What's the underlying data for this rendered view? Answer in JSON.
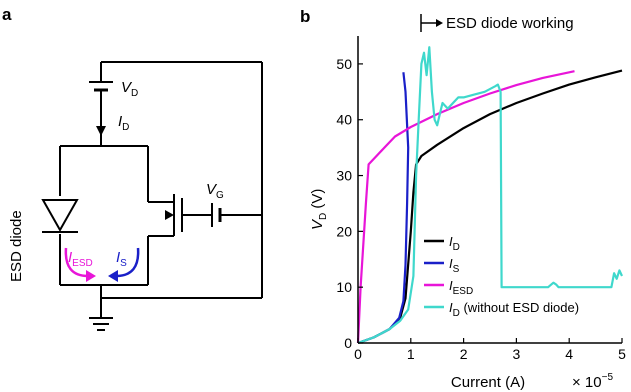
{
  "panel_a": {
    "label": "a",
    "vd_label": "V",
    "vd_sub": "D",
    "id_label": "I",
    "id_sub": "D",
    "vg_label": "V",
    "vg_sub": "G",
    "diode_label": "ESD diode",
    "iesd_label": "I",
    "iesd_sub": "ESD",
    "is_label": "I",
    "is_sub": "S",
    "colors": {
      "iesd": "#e815d8",
      "is": "#1a20c8",
      "wire": "#000000"
    }
  },
  "panel_b": {
    "label": "b",
    "annotation": "ESD diode working"
  },
  "chart_data": {
    "type": "line",
    "xlabel": "Current (A)",
    "x_multiplier": "× 10",
    "x_multiplier_exp": "−5",
    "ylabel_main": "V",
    "ylabel_sub": "D",
    "ylabel_unit": " (V)",
    "xlim": [
      0,
      5
    ],
    "ylim": [
      0,
      55
    ],
    "x_ticks": [
      0,
      1,
      2,
      3,
      4,
      5
    ],
    "y_ticks": [
      0,
      10,
      20,
      30,
      40,
      50
    ],
    "x_tick_labels": [
      "0",
      "1",
      "2",
      "3",
      "4",
      "5"
    ],
    "y_tick_labels": [
      "0",
      "10",
      "20",
      "30",
      "40",
      "50"
    ],
    "grid": false,
    "legend_position": "bottom-right",
    "series": [
      {
        "key": "ID",
        "name_main": "I",
        "name_sub": "D",
        "name_suffix": "",
        "color": "#000000",
        "x": [
          0,
          0.3,
          0.6,
          0.8,
          0.9,
          1.0,
          1.05,
          1.1,
          1.2,
          1.5,
          2.0,
          2.5,
          3.0,
          3.5,
          4.0,
          4.5,
          5.0
        ],
        "y": [
          0,
          1,
          2.5,
          4.5,
          8,
          20,
          27,
          32,
          33.5,
          35.5,
          38.5,
          41,
          43,
          44.7,
          46.3,
          47.6,
          48.8
        ]
      },
      {
        "key": "IS",
        "name_main": "I",
        "name_sub": "S",
        "name_suffix": "",
        "color": "#1a20c8",
        "x": [
          0,
          0.3,
          0.6,
          0.78,
          0.86,
          0.9,
          0.93,
          0.95,
          0.9,
          0.86
        ],
        "y": [
          0,
          1,
          2.5,
          4.5,
          7.5,
          14,
          25,
          35,
          45,
          48.5
        ]
      },
      {
        "key": "IESD",
        "name_main": "I",
        "name_sub": "ESD",
        "name_suffix": "",
        "color": "#e815d8",
        "x": [
          0,
          0.05,
          0.15,
          0.2,
          0.35,
          0.5,
          0.7,
          1.0,
          1.5,
          2.0,
          2.5,
          3.0,
          3.5,
          4.1
        ],
        "y": [
          0,
          10,
          25,
          32,
          33.5,
          35,
          37,
          38.7,
          41,
          43,
          44.7,
          46.2,
          47.5,
          48.7
        ]
      },
      {
        "key": "ID_noESD",
        "name_main": "I",
        "name_sub": "D",
        "name_suffix": " (without ESD diode)",
        "color": "#3fd8cc",
        "x": [
          0,
          0.3,
          0.6,
          0.8,
          0.95,
          1.05,
          1.1,
          1.15,
          1.2,
          1.25,
          1.3,
          1.35,
          1.4,
          1.45,
          1.5,
          1.55,
          1.6,
          1.7,
          1.8,
          1.9,
          2.0,
          2.2,
          2.4,
          2.6,
          2.65,
          2.7,
          2.72,
          2.8,
          3.0,
          3.2,
          3.4,
          3.6,
          3.7,
          3.75,
          3.8,
          4.0,
          4.2,
          4.4,
          4.6,
          4.8,
          4.85,
          4.9,
          4.95,
          5.0
        ],
        "y": [
          0,
          1,
          2.5,
          4,
          6,
          12,
          30,
          40,
          50,
          52,
          48,
          53,
          45,
          40,
          39,
          41,
          43,
          42,
          43,
          44,
          44,
          44.5,
          45,
          46,
          46.3,
          45,
          10,
          10,
          10,
          10,
          10,
          10,
          10.8,
          10.5,
          10,
          10,
          10,
          10,
          10,
          10,
          12.5,
          11.5,
          13,
          12
        ]
      }
    ]
  }
}
